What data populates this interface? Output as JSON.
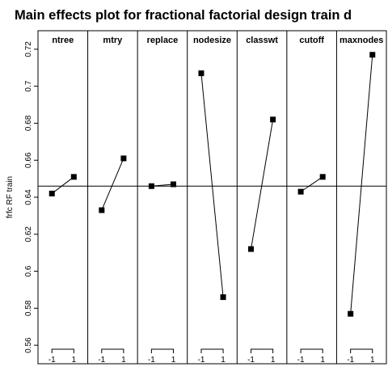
{
  "chart_data": {
    "type": "line",
    "title": "Main effects plot for fractional factorial design train d",
    "ylabel": "frfc RF train",
    "xlabel": "",
    "ylim": [
      0.55,
      0.73
    ],
    "yticks": [
      0.56,
      0.58,
      0.6,
      0.62,
      0.64,
      0.66,
      0.68,
      0.7,
      0.72
    ],
    "x_levels": [
      "-1",
      "1"
    ],
    "reference_line": 0.646,
    "grid": false,
    "factors": [
      {
        "name": "ntree",
        "values": [
          0.642,
          0.651
        ]
      },
      {
        "name": "mtry",
        "values": [
          0.633,
          0.661
        ]
      },
      {
        "name": "replace",
        "values": [
          0.646,
          0.647
        ]
      },
      {
        "name": "nodesize",
        "values": [
          0.707,
          0.586
        ]
      },
      {
        "name": "classwt",
        "values": [
          0.612,
          0.682
        ]
      },
      {
        "name": "cutoff",
        "values": [
          0.643,
          0.651
        ]
      },
      {
        "name": "maxnodes",
        "values": [
          0.577,
          0.717
        ]
      }
    ]
  }
}
